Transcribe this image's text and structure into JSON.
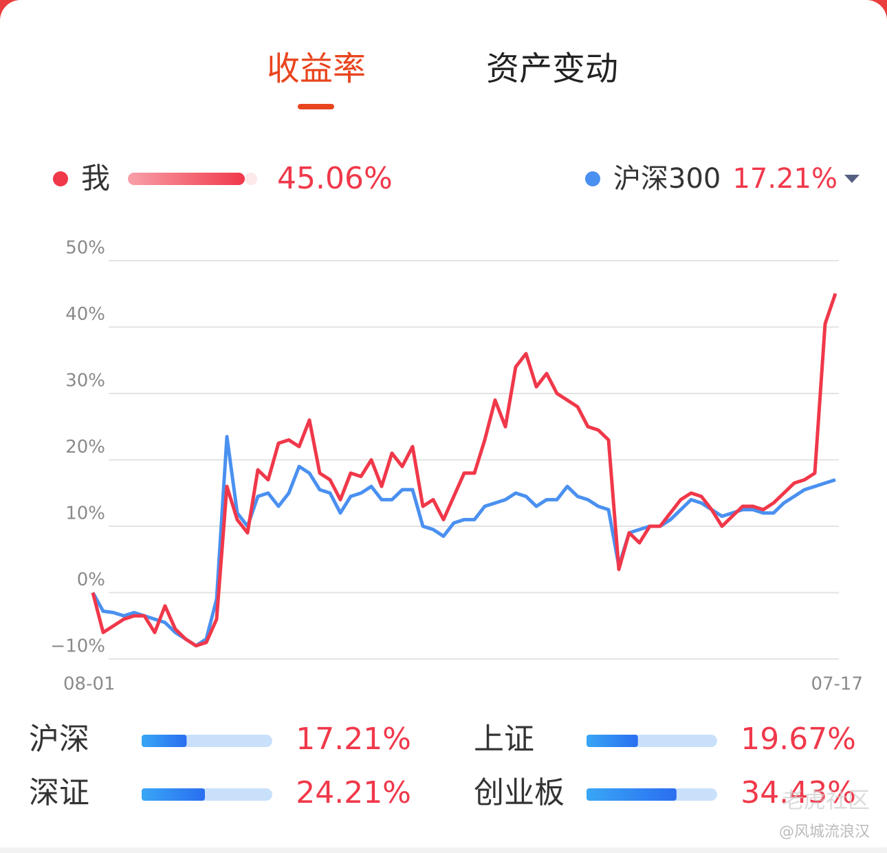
{
  "tabs": [
    {
      "label": "收益率",
      "active": true
    },
    {
      "label": "资产变动",
      "active": false
    }
  ],
  "chart_data": {
    "type": "line",
    "categories": [
      "08-01",
      null,
      null,
      null,
      null,
      null,
      null,
      null,
      null,
      null,
      null,
      null,
      null,
      null,
      null,
      null,
      null,
      null,
      null,
      null,
      null,
      null,
      null,
      null,
      null,
      null,
      null,
      null,
      null,
      null,
      null,
      null,
      null,
      null,
      null,
      null,
      null,
      null,
      null,
      null,
      null,
      null,
      null,
      null,
      null,
      null,
      null,
      null,
      null,
      null,
      null,
      null,
      null,
      null,
      null,
      null,
      null,
      null,
      null,
      null,
      null,
      null,
      null,
      null,
      null,
      null,
      null,
      null,
      null,
      null,
      null,
      null,
      "07-17"
    ],
    "series": [
      {
        "name": "我",
        "color": "#f0384a",
        "return_label": "45.06%",
        "values": [
          0,
          -6,
          -5,
          -4,
          -3.5,
          -3.5,
          -6,
          -2,
          -5.5,
          -7,
          -8,
          -7.5,
          -4,
          16,
          11,
          9,
          18.5,
          17,
          22.5,
          23,
          22,
          26,
          18,
          17,
          14,
          18,
          17.5,
          20,
          16,
          21,
          19,
          22,
          13,
          14,
          11,
          14.5,
          18,
          18,
          23,
          29,
          25,
          34,
          36,
          31,
          33,
          30,
          29,
          28,
          25,
          24.5,
          23,
          3.5,
          9,
          7.5,
          10,
          10,
          12,
          14,
          15,
          14.5,
          12.5,
          10,
          11.5,
          13,
          13,
          12.5,
          13.5,
          15,
          16.5,
          17,
          18,
          40.5,
          45.06
        ]
      },
      {
        "name": "沪深300",
        "color": "#4a90f0",
        "return_label": "17.21%",
        "values": [
          0,
          -2.8,
          -3,
          -3.5,
          -3,
          -3.5,
          -4,
          -4.5,
          -6,
          -7,
          -8,
          -7,
          -1,
          23.5,
          12,
          10,
          14.5,
          15,
          13,
          15,
          19,
          18,
          15.5,
          15,
          12,
          14.5,
          15,
          16,
          14,
          14,
          15.5,
          15.5,
          10,
          9.5,
          8.5,
          10.5,
          11,
          11,
          13,
          13.5,
          14,
          15,
          14.5,
          13,
          14,
          14,
          16,
          14.5,
          14,
          13,
          12.5,
          4,
          9,
          9.5,
          10,
          10,
          11,
          12.5,
          14,
          13.5,
          12.5,
          11.5,
          12,
          12.5,
          12.5,
          12,
          12,
          13.5,
          14.5,
          15.5,
          16,
          16.5,
          17
        ]
      }
    ],
    "ylim": [
      -10,
      50
    ],
    "yticks": [
      {
        "value": -10,
        "label": "−10%"
      },
      {
        "value": 0,
        "label": "0%"
      },
      {
        "value": 10,
        "label": "10%"
      },
      {
        "value": 20,
        "label": "20%"
      },
      {
        "value": 30,
        "label": "30%"
      },
      {
        "value": 40,
        "label": "40%"
      },
      {
        "value": 50,
        "label": "50%"
      }
    ],
    "grid": true
  },
  "benchmarks": [
    {
      "name": "沪深",
      "value": 17.21,
      "value_label": "17.21%"
    },
    {
      "name": "上证",
      "value": 19.67,
      "value_label": "19.67%"
    },
    {
      "name": "深证",
      "value": 24.21,
      "value_label": "24.21%"
    },
    {
      "name": "创业板",
      "value": 34.43,
      "value_label": "34.43%"
    }
  ],
  "watermark": {
    "site": "老虎社区",
    "user": "@风城流浪汉"
  }
}
